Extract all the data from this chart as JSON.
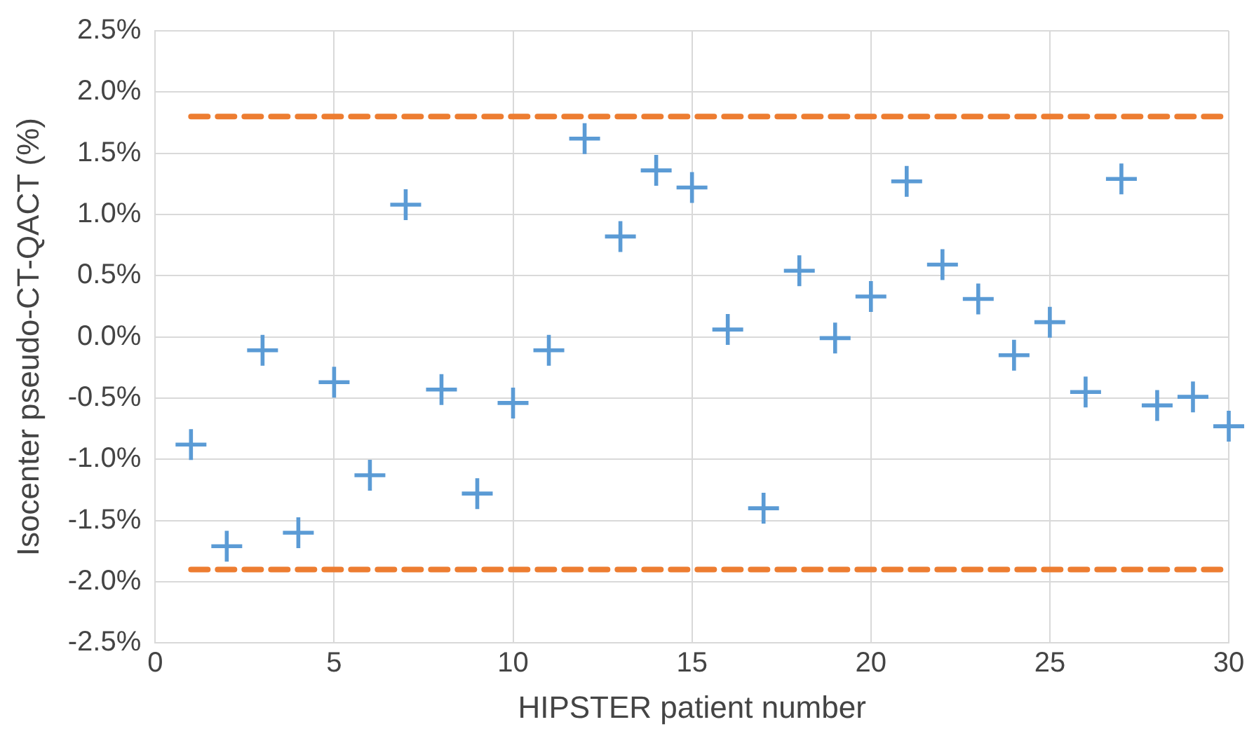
{
  "chart_data": {
    "type": "scatter",
    "xlabel": "HIPSTER patient number",
    "ylabel": "Isocenter pseudo-CT-QACT (%)",
    "x": [
      1,
      2,
      3,
      4,
      5,
      6,
      7,
      8,
      9,
      10,
      11,
      12,
      13,
      14,
      15,
      16,
      17,
      18,
      19,
      20,
      21,
      22,
      23,
      24,
      25,
      26,
      27,
      28,
      29,
      30
    ],
    "series": [
      {
        "color": "#5b9bd5",
        "values": [
          -0.88,
          -1.71,
          -0.11,
          -1.6,
          -0.37,
          -1.13,
          1.08,
          -0.43,
          -1.28,
          -0.54,
          -0.11,
          1.62,
          0.82,
          1.36,
          1.22,
          0.06,
          -1.4,
          0.54,
          -0.01,
          0.33,
          1.27,
          0.59,
          0.31,
          -0.15,
          0.12,
          -0.45,
          1.29,
          -0.56,
          -0.49,
          -0.73
        ]
      }
    ],
    "marker": "cross",
    "grid": true,
    "legend": false,
    "xlim": [
      0,
      30
    ],
    "xticks": [
      0,
      5,
      10,
      15,
      20,
      25,
      30
    ],
    "ylim": [
      -2.5,
      2.5
    ],
    "yticks": [
      {
        "value": -2.5,
        "label": "-2.5%"
      },
      {
        "value": -2,
        "label": "-2.0%"
      },
      {
        "value": -1.5,
        "label": "-1.5%"
      },
      {
        "value": -1,
        "label": "-1.0%"
      },
      {
        "value": -0.5,
        "label": "-0.5%"
      },
      {
        "value": 0,
        "label": "0.0%"
      },
      {
        "value": 0.5,
        "label": "0.5%"
      },
      {
        "value": 1,
        "label": "1.0%"
      },
      {
        "value": 1.5,
        "label": "1.5%"
      },
      {
        "value": 2,
        "label": "2.0%"
      },
      {
        "value": 2.5,
        "label": "2.5%"
      }
    ],
    "ref_lines": [
      {
        "axis": "y",
        "value": 1.8,
        "color": "#ed7d31",
        "line_style": "dashed"
      },
      {
        "axis": "y",
        "value": -1.9,
        "color": "#ed7d31",
        "line_style": "dashed"
      }
    ]
  }
}
